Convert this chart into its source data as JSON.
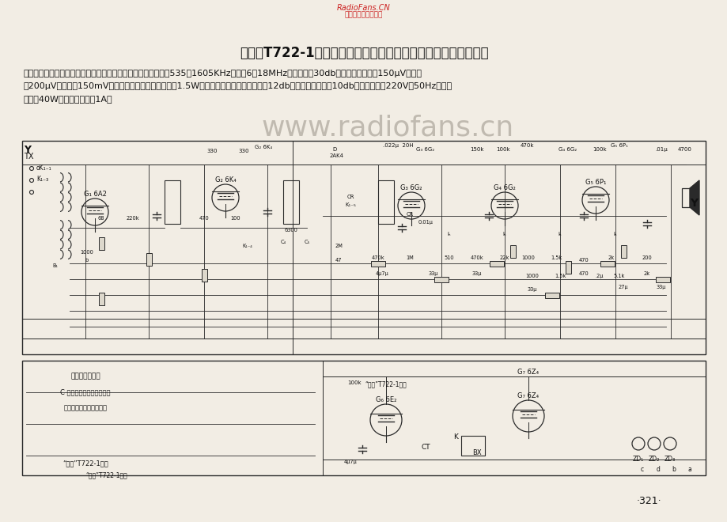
{
  "page_bg": "#f2ede4",
  "title": "电声牌T722-1型交流七管二波段（四川重庆南岸无线电厂产品）",
  "watermark_line1": "RadioFans.CN",
  "watermark_line2": "收音机爱好者资料库",
  "desc1": "【说明】本机是台式超外差中短波调幅收音机。频率范围：中波535～1605KHz，短波6～18MHz。选择性＞30db。灵敏度：中波＜150μV，短波",
  "desc2": "＜200μV，抑音＜150mV，输出功率：额定不失真输出1.5W。音调控制：高音调节范围＞12db，低音调节范围＞10db。电源电压，220V，50Hz。电力",
  "desc3": "消耗：40W左右。保险丝：1A。",
  "watermark_big": "www.radiofans.cn",
  "page_number": "·321·",
  "circuit_bg": "#ddd8cc",
  "line_color": "#2a2a2a"
}
